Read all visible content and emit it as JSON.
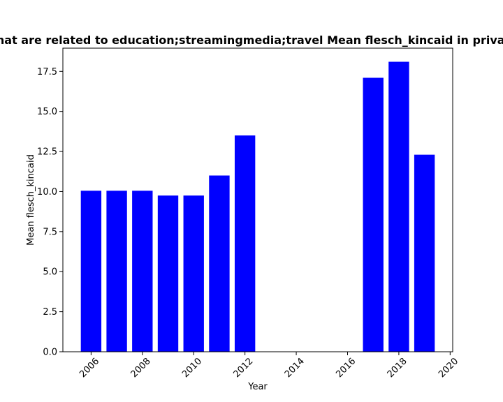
{
  "chart_data": {
    "type": "bar",
    "title": "Sites that are related to education;streamingmedia;travel Mean flesch_kincaid in privacy policy",
    "xlabel": "Year",
    "ylabel": "Mean flesch_kincaid",
    "x": [
      2006,
      2007,
      2008,
      2009,
      2010,
      2011,
      2012,
      2017,
      2018,
      2019
    ],
    "values": [
      10.05,
      10.05,
      10.05,
      9.75,
      9.75,
      11.0,
      13.5,
      17.1,
      18.1,
      12.3
    ],
    "xlim": [
      2004.9,
      2020.1
    ],
    "ylim": [
      0,
      18.95
    ],
    "xticks": [
      2006,
      2008,
      2010,
      2012,
      2014,
      2016,
      2018,
      2020
    ],
    "yticks": [
      0.0,
      2.5,
      5.0,
      7.5,
      10.0,
      12.5,
      15.0,
      17.5
    ],
    "bar_color": "#0000ff",
    "grid": false
  }
}
